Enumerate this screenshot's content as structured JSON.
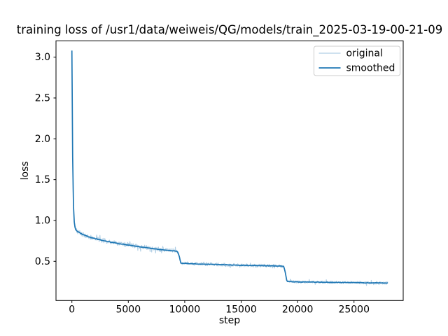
{
  "figure": {
    "background": "#ffffff",
    "accent": "#1f77b4"
  },
  "chart_data": {
    "type": "line",
    "title": "training loss of /usr1/data/weiweis/QG/models/train_2025-03-19-00-21-09",
    "xlabel": "step",
    "ylabel": "loss",
    "grid": false,
    "xlim": [
      -1408,
      29360
    ],
    "ylim": [
      0.02,
      3.2
    ],
    "xticks": [
      0,
      5000,
      10000,
      15000,
      20000,
      25000
    ],
    "yticks": [
      0.5,
      1.0,
      1.5,
      2.0,
      2.5,
      3.0
    ],
    "x_end": 28000,
    "legend": {
      "position": "upper right",
      "entries": [
        {
          "label": "original",
          "color": "#b1cfe5",
          "line_width": 1.2
        },
        {
          "label": "smoothed",
          "color": "#1f77b4",
          "line_width": 1.8
        }
      ]
    },
    "series": [
      {
        "name": "original",
        "color": "#b1cfe5",
        "line_width": 1.1,
        "sample_step": 35,
        "noise": {
          "seed": 42,
          "spike_prob": 0.08,
          "spike_mult": 2.1,
          "segments": [
            {
              "from": 0,
              "to": 300,
              "amp": 0.012
            },
            {
              "from": 300,
              "to": 9450,
              "amp": 0.028
            },
            {
              "from": 9450,
              "to": 9750,
              "amp": 0.013
            },
            {
              "from": 9750,
              "to": 18800,
              "amp": 0.02
            },
            {
              "from": 18800,
              "to": 19100,
              "amp": 0.01
            },
            {
              "from": 19100,
              "to": 28001,
              "amp": 0.016
            }
          ]
        }
      },
      {
        "name": "smoothed",
        "color": "#1f77b4",
        "line_width": 1.7,
        "sample_step": 70,
        "wiggle_amp": 0.003,
        "keypoints": [
          [
            0,
            3.08
          ],
          [
            40,
            2.3
          ],
          [
            80,
            1.6
          ],
          [
            120,
            1.25
          ],
          [
            180,
            1.02
          ],
          [
            250,
            0.93
          ],
          [
            350,
            0.885
          ],
          [
            500,
            0.865
          ],
          [
            800,
            0.84
          ],
          [
            1200,
            0.815
          ],
          [
            1600,
            0.795
          ],
          [
            2000,
            0.78
          ],
          [
            2500,
            0.762
          ],
          [
            3000,
            0.747
          ],
          [
            3500,
            0.733
          ],
          [
            4000,
            0.72
          ],
          [
            4500,
            0.709
          ],
          [
            5000,
            0.699
          ],
          [
            5500,
            0.689
          ],
          [
            6000,
            0.679
          ],
          [
            6500,
            0.669
          ],
          [
            7000,
            0.659
          ],
          [
            7500,
            0.65
          ],
          [
            8000,
            0.642
          ],
          [
            8500,
            0.634
          ],
          [
            9000,
            0.627
          ],
          [
            9350,
            0.622
          ],
          [
            9500,
            0.57
          ],
          [
            9650,
            0.478
          ],
          [
            9900,
            0.475
          ],
          [
            11000,
            0.469
          ],
          [
            12500,
            0.462
          ],
          [
            14000,
            0.456
          ],
          [
            15500,
            0.45
          ],
          [
            17000,
            0.446
          ],
          [
            18200,
            0.442
          ],
          [
            18780,
            0.44
          ],
          [
            18900,
            0.37
          ],
          [
            19060,
            0.253
          ],
          [
            19500,
            0.25
          ],
          [
            20000,
            0.248
          ],
          [
            21000,
            0.246
          ],
          [
            22000,
            0.244
          ],
          [
            23000,
            0.242
          ],
          [
            24000,
            0.241
          ],
          [
            25000,
            0.239
          ],
          [
            26000,
            0.237
          ],
          [
            27000,
            0.235
          ],
          [
            28000,
            0.233
          ]
        ]
      }
    ]
  }
}
